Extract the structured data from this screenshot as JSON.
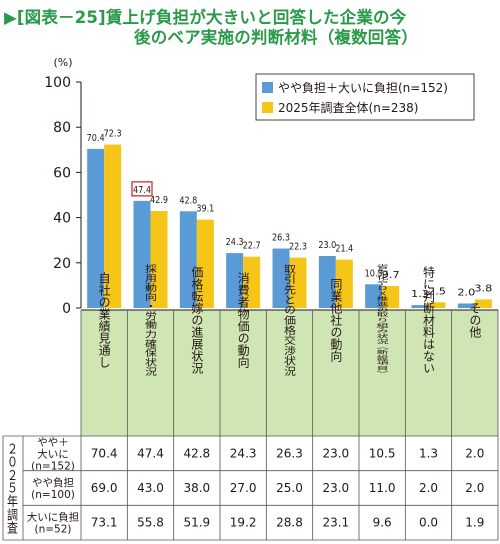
{
  "title": {
    "line1": "[図表－25]賃上げ負担が大きいと回答した企業の今",
    "line2": "後のベア実施の判断材料（複数回答）"
  },
  "colors": {
    "title_green": "#2a9a4a",
    "series_blue": "#5b9bd5",
    "series_yellow": "#f5c518",
    "table_header_green": "#cfe6b4",
    "highlight_red": "#d9282f"
  },
  "chart_data": {
    "type": "bar",
    "unit_label": "(%)",
    "ylim": [
      0,
      100
    ],
    "yticks": [
      0,
      20,
      40,
      60,
      80,
      100
    ],
    "categories": [
      "自社の業績見通し",
      "採用動向・労働力確保状況",
      "価格転嫁の進展状況",
      "消費者物価の動向",
      "取引先との価格交渉状況",
      "同業他社の動向",
      "省力化やＤＸ推進の取り組み状況（新設項目）",
      "特に判断材料はない",
      "その他"
    ],
    "category_labels": [
      "自社の業績見通し",
      "採用動向・労働力確保状況",
      "価格転嫁の進展状況",
      "消費者物価の動向",
      "取引先との価格交渉状況",
      "同業他社の動向",
      "省力化やＤＸ推進の取り組み状況（新設項目）",
      "特に判断材料はない",
      "その他"
    ],
    "series": [
      {
        "name": "やや負担＋大いに負担(n=152)",
        "values": [
          70.4,
          47.4,
          42.8,
          24.3,
          26.3,
          23.0,
          10.5,
          1.3,
          2.0
        ]
      },
      {
        "name": "2025年調査全体(n=238)",
        "values": [
          72.3,
          42.9,
          39.1,
          22.7,
          22.3,
          21.4,
          9.7,
          2.5,
          3.8
        ]
      }
    ],
    "value_labels": [
      [
        "70.4",
        "47.4",
        "42.8",
        "24.3",
        "26.3",
        "23.0",
        "10.5",
        "1.3",
        "2.0"
      ],
      [
        "72.3",
        "42.9",
        "39.1",
        "22.7",
        "22.3",
        "21.4",
        "9.7",
        "2.5",
        "3.8"
      ]
    ],
    "highlight": {
      "series": 0,
      "index": 1
    },
    "legend_position": "top-right",
    "grid": false
  },
  "table": {
    "side_label": "２０２５年調査",
    "rows": [
      {
        "label_lines": [
          "やや＋",
          "大いに",
          "(n=152)"
        ],
        "values": [
          "70.4",
          "47.4",
          "42.8",
          "24.3",
          "26.3",
          "23.0",
          "10.5",
          "1.3",
          "2.0"
        ]
      },
      {
        "label_lines": [
          "やや負担",
          "(n=100)"
        ],
        "values": [
          "69.0",
          "43.0",
          "38.0",
          "27.0",
          "25.0",
          "23.0",
          "11.0",
          "2.0",
          "2.0"
        ]
      },
      {
        "label_lines": [
          "大いに負担",
          "(n=52)"
        ],
        "values": [
          "73.1",
          "55.8",
          "51.9",
          "19.2",
          "28.8",
          "23.1",
          "9.6",
          "0.0",
          "1.9"
        ]
      }
    ]
  }
}
